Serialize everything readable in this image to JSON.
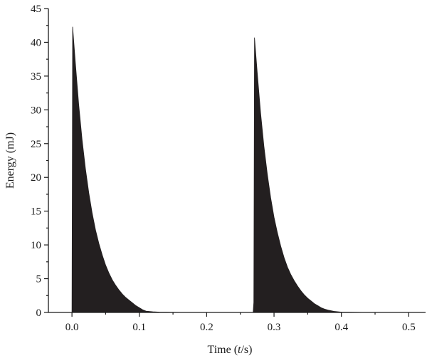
{
  "chart_data": {
    "type": "area",
    "title": "",
    "xlabel": {
      "prefix": "Time (",
      "var": "t",
      "suffix": "/s)"
    },
    "ylabel": "Energy (mJ)",
    "xlim": [
      -0.035,
      0.525
    ],
    "ylim": [
      0,
      45
    ],
    "xticks": [
      0.0,
      0.1,
      0.2,
      0.3,
      0.4,
      0.5
    ],
    "xtick_labels": [
      "0.0",
      "0.1",
      "0.2",
      "0.3",
      "0.4",
      "0.5"
    ],
    "yticks": [
      0,
      5,
      10,
      15,
      20,
      25,
      30,
      35,
      40,
      45
    ],
    "ytick_labels": [
      "0",
      "5",
      "10",
      "15",
      "20",
      "25",
      "30",
      "35",
      "40",
      "45"
    ],
    "grid": false,
    "fill_color": "#231f20",
    "series": [
      {
        "x": [
          0.0,
          0.001,
          0.005,
          0.01,
          0.015,
          0.02,
          0.025,
          0.03,
          0.035,
          0.04,
          0.045,
          0.05,
          0.055,
          0.06,
          0.065,
          0.07,
          0.075,
          0.08,
          0.085,
          0.09,
          0.095,
          0.1,
          0.105,
          0.11,
          0.12,
          0.13,
          0.15,
          0.2,
          0.25,
          0.269,
          0.27,
          0.271,
          0.275,
          0.28,
          0.285,
          0.29,
          0.295,
          0.3,
          0.305,
          0.31,
          0.315,
          0.32,
          0.325,
          0.33,
          0.335,
          0.34,
          0.345,
          0.35,
          0.355,
          0.36,
          0.365,
          0.37,
          0.375,
          0.38,
          0.39,
          0.4,
          0.42,
          0.45,
          0.5,
          0.51
        ],
        "values": [
          0.0,
          42.3,
          37.0,
          30.8,
          25.6,
          21.3,
          17.7,
          14.7,
          12.2,
          10.2,
          8.5,
          7.0,
          5.8,
          4.8,
          4.0,
          3.3,
          2.7,
          2.2,
          1.8,
          1.4,
          1.0,
          0.7,
          0.4,
          0.2,
          0.1,
          0.05,
          0.02,
          0.0,
          0.0,
          0.0,
          1.5,
          40.7,
          35.6,
          29.6,
          24.6,
          20.5,
          17.0,
          14.1,
          11.8,
          9.8,
          8.1,
          6.7,
          5.6,
          4.7,
          3.9,
          3.2,
          2.6,
          2.1,
          1.7,
          1.3,
          1.0,
          0.7,
          0.5,
          0.35,
          0.15,
          0.05,
          0.02,
          0.0,
          0.0,
          0.0
        ]
      }
    ]
  }
}
